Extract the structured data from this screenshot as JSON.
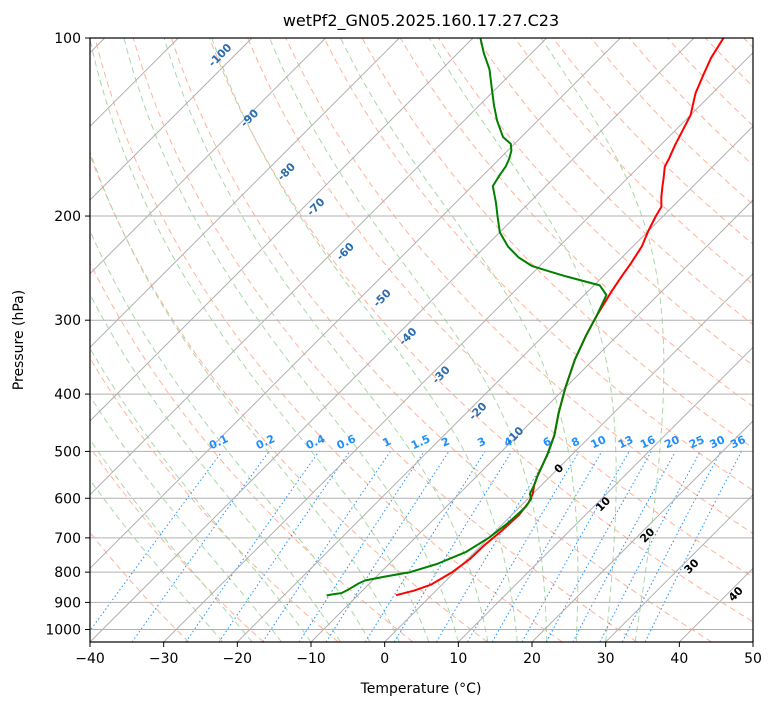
{
  "chart_data": {
    "type": "line",
    "title": "wetPf2_GN05.2025.160.17.27.C23",
    "xlabel": "Temperature (°C)",
    "ylabel": "Pressure (hPa)",
    "xlim": [
      -40,
      50
    ],
    "ylim": [
      1050,
      100
    ],
    "y_scale": "log",
    "grid": true,
    "x_ticks": [
      -40,
      -30,
      -20,
      -10,
      0,
      10,
      20,
      30,
      40,
      50
    ],
    "y_ticks": [
      100,
      200,
      300,
      400,
      500,
      600,
      700,
      800,
      900,
      1000
    ],
    "series": [
      {
        "color": "#ff0000",
        "points": [
          [
            -4.8,
            875
          ],
          [
            -3.0,
            860
          ],
          [
            -1.5,
            840
          ],
          [
            -0.3,
            800
          ],
          [
            0.3,
            760
          ],
          [
            0.4,
            720
          ],
          [
            0.8,
            680
          ],
          [
            1.0,
            640
          ],
          [
            0.6,
            610
          ],
          [
            0.0,
            590
          ],
          [
            -1.0,
            570
          ],
          [
            -1.8,
            550
          ],
          [
            -3.4,
            505
          ],
          [
            -5.0,
            470
          ],
          [
            -7.5,
            430
          ],
          [
            -10.0,
            390
          ],
          [
            -12.5,
            350
          ],
          [
            -14.3,
            318
          ],
          [
            -15.5,
            295
          ],
          [
            -16.8,
            268
          ],
          [
            -17.5,
            252
          ],
          [
            -18.0,
            240
          ],
          [
            -18.8,
            225
          ],
          [
            -20.0,
            212
          ],
          [
            -21.0,
            200
          ],
          [
            -21.5,
            193
          ],
          [
            -22.8,
            186
          ],
          [
            -24.0,
            179
          ],
          [
            -25.2,
            172
          ],
          [
            -26.5,
            165
          ],
          [
            -27.0,
            160
          ],
          [
            -28.0,
            152
          ],
          [
            -28.8,
            145
          ],
          [
            -30.0,
            135
          ],
          [
            -32.3,
            124
          ],
          [
            -33.8,
            115
          ],
          [
            -35.0,
            108
          ],
          [
            -36.0,
            100
          ]
        ]
      },
      {
        "color": "#008000",
        "points": [
          [
            -14.2,
            876
          ],
          [
            -13.5,
            872
          ],
          [
            -12.5,
            868
          ],
          [
            -12.0,
            855
          ],
          [
            -11.5,
            836
          ],
          [
            -11.0,
            826
          ],
          [
            -9.0,
            815
          ],
          [
            -6.0,
            800
          ],
          [
            -3.5,
            775
          ],
          [
            -1.2,
            740
          ],
          [
            0.0,
            700
          ],
          [
            0.6,
            660
          ],
          [
            0.8,
            620
          ],
          [
            0.4,
            600
          ],
          [
            -0.4,
            590
          ],
          [
            -1.0,
            570
          ],
          [
            -1.8,
            550
          ],
          [
            -3.4,
            505
          ],
          [
            -5.0,
            470
          ],
          [
            -7.5,
            430
          ],
          [
            -10.0,
            390
          ],
          [
            -12.5,
            350
          ],
          [
            -14.3,
            318
          ],
          [
            -15.5,
            295
          ],
          [
            -17.0,
            272
          ],
          [
            -19.2,
            262
          ],
          [
            -25.0,
            253
          ],
          [
            -28.0,
            248
          ],
          [
            -31.0,
            243
          ],
          [
            -34.0,
            235
          ],
          [
            -37.0,
            225
          ],
          [
            -40.0,
            213
          ],
          [
            -42.5,
            200
          ],
          [
            -44.5,
            190
          ],
          [
            -47.2,
            178
          ],
          [
            -47.8,
            170
          ],
          [
            -48.1,
            165
          ],
          [
            -48.7,
            160
          ],
          [
            -49.5,
            155
          ],
          [
            -50.5,
            151
          ],
          [
            -52.5,
            147
          ],
          [
            -55.5,
            138
          ],
          [
            -58.0,
            130
          ],
          [
            -60.5,
            122
          ],
          [
            -63.5,
            113
          ],
          [
            -66.5,
            106
          ],
          [
            -69.0,
            100
          ]
        ]
      }
    ],
    "mixing_ratio_labels": [
      "0.1",
      "0.2",
      "0.4",
      "0.6",
      "1",
      "1.5",
      "2",
      "3",
      "4",
      "6",
      "8",
      "10",
      "13",
      "16",
      "20",
      "25",
      "30",
      "36"
    ],
    "moist_adiabat_labels": [
      "0",
      "10",
      "20",
      "30",
      "40"
    ],
    "dry_adiabat_labels": [
      "-100",
      "-90",
      "-80",
      "-70",
      "-60",
      "-50",
      "-40",
      "-30",
      "-20",
      "-10"
    ],
    "colors": {
      "grid": "#b0b0b0",
      "dry_adiabat": "#ffb399",
      "moist_adiabat": "#a8d8a8",
      "mixing_ratio": "#1e90ff",
      "mixing_label": "#1e90ff",
      "moist_label": "#d62728",
      "zero_label": "#808080",
      "dry_label": "#2b6cb0"
    }
  }
}
